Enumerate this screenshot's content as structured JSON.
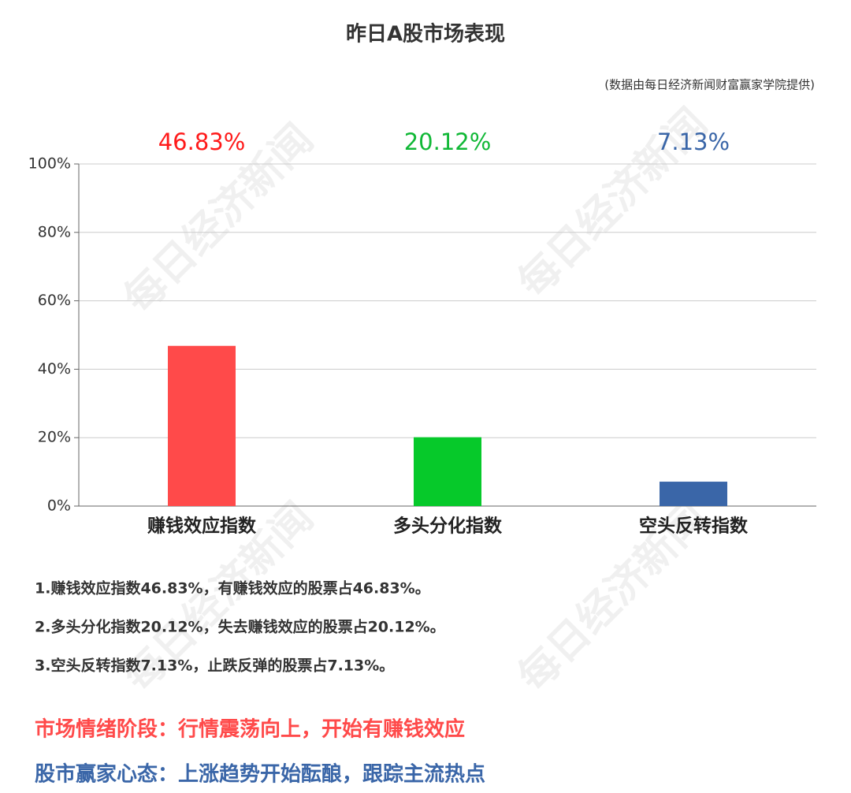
{
  "chart_data": {
    "type": "bar",
    "title": "昨日A股市场表现",
    "subtitle": "(数据由每日经济新闻财富赢家学院提供)",
    "categories": [
      "赚钱效应指数",
      "多头分化指数",
      "空头反转指数"
    ],
    "values": [
      46.83,
      20.12,
      7.13
    ],
    "value_labels": [
      "46.83%",
      "20.12%",
      "7.13%"
    ],
    "colors": [
      "#ff4a4a",
      "#06c92a",
      "#3a66a8"
    ],
    "label_colors": [
      "#ff1a1a",
      "#10b836",
      "#3a66a8"
    ],
    "ylim": [
      0,
      100
    ],
    "yticks": [
      {
        "value": 0,
        "label": "0%"
      },
      {
        "value": 20,
        "label": "20%"
      },
      {
        "value": 40,
        "label": "40%"
      },
      {
        "value": 60,
        "label": "60%"
      },
      {
        "value": 80,
        "label": "80%"
      },
      {
        "value": 100,
        "label": "100%"
      }
    ],
    "grid": true
  },
  "notes": [
    "1.赚钱效应指数46.83%，有赚钱效应的股票占46.83%。",
    "2.多头分化指数20.12%，失去赚钱效应的股票占20.12%。",
    "3.空头反转指数7.13%，止跌反弹的股票占7.13%。"
  ],
  "summary": [
    {
      "text": "市场情绪阶段：行情震荡向上，开始有赚钱效应",
      "color": "#ff4a4a"
    },
    {
      "text": "股市赢家心态：上涨趋势开始酝酿，跟踪主流热点",
      "color": "#3a66a8"
    }
  ],
  "watermark": "每日经济新闻"
}
